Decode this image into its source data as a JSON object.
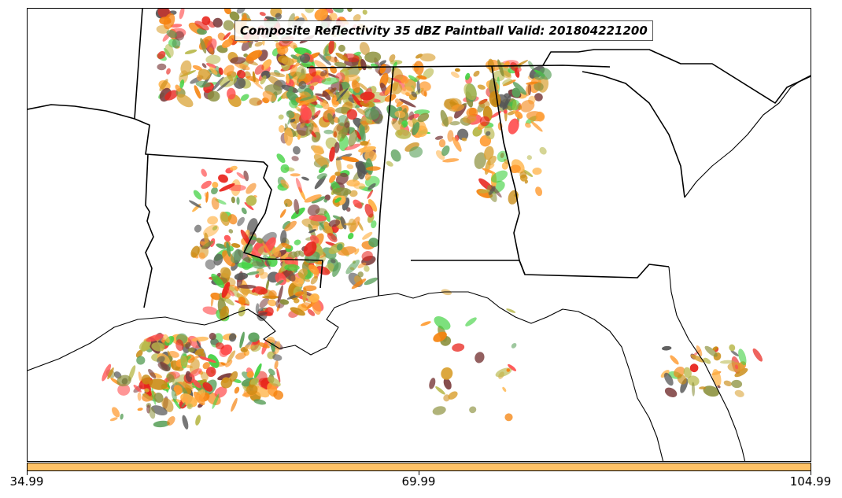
{
  "title": "Composite Reflectivity 35 dBZ Paintball Valid: 201804221200",
  "colorbar": {
    "color": "#ffc266",
    "ticks": [
      "34.99",
      "69.99",
      "104.99"
    ]
  },
  "palette": [
    "#e8241c",
    "#f5830f",
    "#ff9a2e",
    "#ff4d4d",
    "#ffb347",
    "#c98a12",
    "#3fd13f",
    "#5aa05a",
    "#7a3b3b",
    "#8a8f3a",
    "#555555",
    "#b8b84a",
    "#d9a030"
  ],
  "map": {
    "region": "southeastern-united-states",
    "layers": [
      "state-borders",
      "coastline",
      "paintball-reflectivity-members"
    ]
  }
}
